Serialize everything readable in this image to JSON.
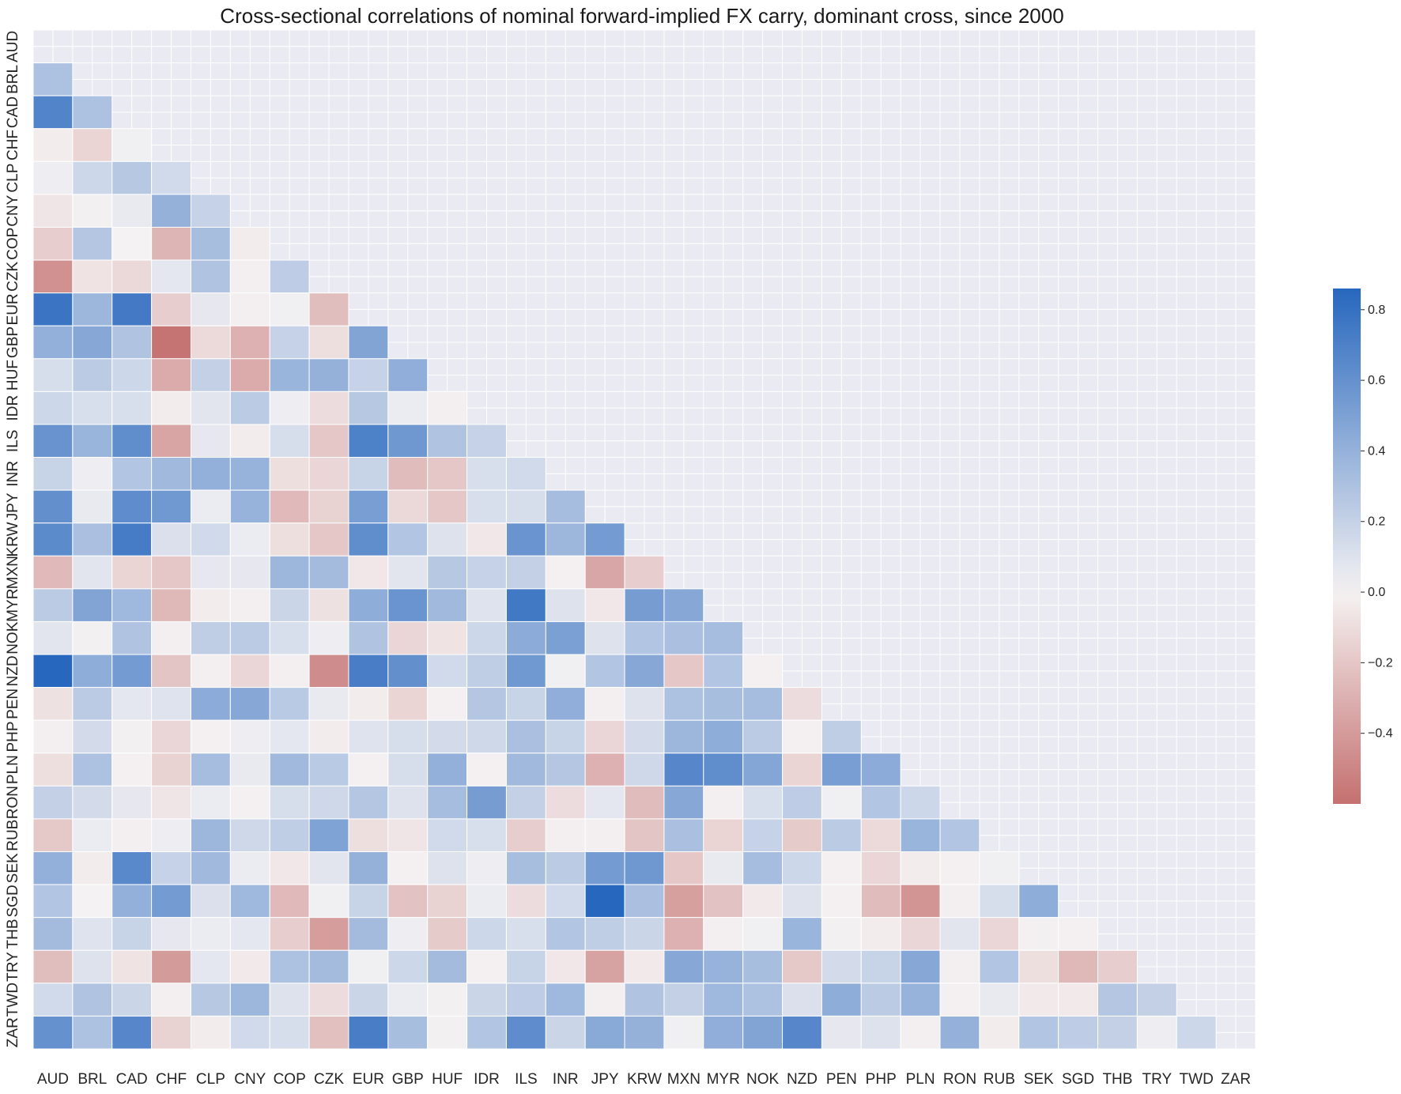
{
  "chart_data": {
    "type": "heatmap",
    "title": "Cross-sectional correlations of nominal forward-implied FX carry, dominant cross, since 2000",
    "xlabel": "",
    "ylabel": "",
    "x_labels": [
      "AUD",
      "BRL",
      "CAD",
      "CHF",
      "CLP",
      "CNY",
      "COP",
      "CZK",
      "EUR",
      "GBP",
      "HUF",
      "IDR",
      "ILS",
      "INR",
      "JPY",
      "KRW",
      "MXN",
      "MYR",
      "NOK",
      "NZD",
      "PEN",
      "PHP",
      "PLN",
      "RON",
      "RUB",
      "SEK",
      "SGD",
      "THB",
      "TRY",
      "TWD",
      "ZAR"
    ],
    "y_labels": [
      "AUD",
      "BRL",
      "CAD",
      "CHF",
      "CLP",
      "CNY",
      "COP",
      "CZK",
      "EUR",
      "GBP",
      "HUF",
      "IDR",
      "ILS",
      "INR",
      "JPY",
      "KRW",
      "MXN",
      "MYR",
      "NOK",
      "NZD",
      "PEN",
      "PHP",
      "PLN",
      "RON",
      "RUB",
      "SEK",
      "SGD",
      "THB",
      "TRY",
      "TWD",
      "ZAR"
    ],
    "mask": "upper triangle including diagonal",
    "colormap": {
      "low": "#c4706f",
      "mid": "#f5f2f3",
      "high": "#2767be"
    },
    "color_range": [
      -0.6,
      0.86
    ],
    "colorbar": {
      "ticks": [
        -0.4,
        -0.2,
        0.0,
        0.2,
        0.4,
        0.6,
        0.8
      ],
      "tick_labels": [
        "−0.4",
        "−0.2",
        "0.0",
        "0.2",
        "0.4",
        "0.6",
        "0.8"
      ],
      "placement": "right"
    },
    "background": "#eaeaf2",
    "rows": [
      [],
      [
        0.3
      ],
      [
        0.68,
        0.3
      ],
      [
        -0.03,
        -0.14,
        0.02
      ],
      [
        0.03,
        0.17,
        0.26,
        0.15
      ],
      [
        -0.06,
        0.01,
        0.05,
        0.4,
        0.2
      ],
      [
        -0.17,
        0.27,
        0.0,
        -0.28,
        0.32,
        -0.03
      ],
      [
        -0.45,
        -0.07,
        -0.12,
        0.07,
        0.29,
        -0.02,
        0.23
      ],
      [
        0.78,
        0.37,
        0.74,
        -0.17,
        0.06,
        -0.02,
        0.02,
        -0.24
      ],
      [
        0.41,
        0.46,
        0.29,
        -0.58,
        -0.11,
        -0.3,
        0.2,
        -0.09,
        0.48
      ],
      [
        0.13,
        0.24,
        0.17,
        -0.33,
        0.21,
        -0.33,
        0.38,
        0.4,
        0.2,
        0.42
      ],
      [
        0.17,
        0.12,
        0.12,
        -0.03,
        0.08,
        0.24,
        0.03,
        -0.1,
        0.26,
        0.04,
        -0.02
      ],
      [
        0.59,
        0.38,
        0.62,
        -0.36,
        0.06,
        -0.03,
        0.13,
        -0.2,
        0.7,
        0.56,
        0.29,
        0.2
      ],
      [
        0.19,
        0.03,
        0.28,
        0.35,
        0.41,
        0.39,
        -0.09,
        -0.13,
        0.19,
        -0.25,
        -0.2,
        0.12,
        0.15
      ],
      [
        0.61,
        0.05,
        0.63,
        0.55,
        0.04,
        0.39,
        -0.26,
        -0.15,
        0.52,
        -0.12,
        -0.2,
        0.12,
        0.13,
        0.33
      ],
      [
        0.64,
        0.31,
        0.73,
        0.11,
        0.15,
        0.04,
        -0.09,
        -0.2,
        0.62,
        0.28,
        0.1,
        -0.05,
        0.58,
        0.37,
        0.54
      ],
      [
        -0.26,
        0.08,
        -0.14,
        -0.2,
        0.06,
        0.06,
        0.37,
        0.34,
        -0.05,
        0.08,
        0.26,
        0.2,
        0.21,
        -0.01,
        -0.35,
        -0.17
      ],
      [
        0.24,
        0.48,
        0.36,
        -0.27,
        -0.03,
        -0.02,
        0.18,
        -0.08,
        0.43,
        0.58,
        0.35,
        0.09,
        0.75,
        0.1,
        -0.05,
        0.53,
        0.46
      ],
      [
        0.08,
        0.01,
        0.29,
        -0.02,
        0.22,
        0.24,
        0.12,
        0.03,
        0.29,
        -0.13,
        -0.07,
        0.17,
        0.44,
        0.51,
        0.1,
        0.28,
        0.31,
        0.33
      ],
      [
        0.86,
        0.43,
        0.54,
        -0.21,
        -0.02,
        -0.13,
        -0.02,
        -0.47,
        0.72,
        0.61,
        0.15,
        0.22,
        0.55,
        0.02,
        0.28,
        0.46,
        -0.2,
        0.28,
        -0.01
      ],
      [
        -0.08,
        0.24,
        0.07,
        0.09,
        0.44,
        0.46,
        0.25,
        0.05,
        -0.03,
        -0.14,
        -0.01,
        0.27,
        0.19,
        0.42,
        -0.02,
        0.1,
        0.3,
        0.32,
        0.33,
        -0.1
      ],
      [
        -0.02,
        0.14,
        0.01,
        -0.13,
        -0.01,
        0.03,
        0.07,
        -0.03,
        0.09,
        0.13,
        0.14,
        0.16,
        0.31,
        0.19,
        -0.13,
        0.14,
        0.37,
        0.43,
        0.24,
        -0.01,
        0.22
      ],
      [
        -0.09,
        0.3,
        -0.01,
        -0.15,
        0.33,
        0.05,
        0.35,
        0.25,
        -0.01,
        0.13,
        0.41,
        -0.01,
        0.35,
        0.27,
        -0.3,
        0.16,
        0.66,
        0.62,
        0.47,
        -0.14,
        0.52,
        0.44
      ],
      [
        0.21,
        0.14,
        0.06,
        -0.06,
        0.04,
        -0.01,
        0.13,
        0.16,
        0.27,
        0.1,
        0.33,
        0.53,
        0.21,
        -0.1,
        0.07,
        -0.25,
        0.46,
        -0.02,
        0.12,
        0.23,
        0.02,
        0.28,
        0.17
      ],
      [
        -0.19,
        0.04,
        -0.02,
        0.03,
        0.37,
        0.16,
        0.22,
        0.49,
        -0.09,
        -0.06,
        0.15,
        0.12,
        -0.17,
        -0.02,
        -0.02,
        -0.21,
        0.31,
        -0.14,
        0.2,
        -0.18,
        0.24,
        -0.11,
        0.38,
        0.28
      ],
      [
        0.41,
        -0.03,
        0.65,
        0.2,
        0.35,
        0.04,
        -0.05,
        0.08,
        0.4,
        -0.01,
        0.1,
        0.03,
        0.32,
        0.24,
        0.54,
        0.56,
        -0.2,
        0.05,
        0.33,
        0.17,
        -0.01,
        -0.13,
        -0.03,
        -0.01,
        0.02
      ],
      [
        0.28,
        0.0,
        0.41,
        0.54,
        0.11,
        0.36,
        -0.26,
        0.02,
        0.19,
        -0.22,
        -0.15,
        0.04,
        -0.1,
        0.15,
        0.86,
        0.31,
        -0.38,
        -0.22,
        -0.04,
        0.1,
        -0.01,
        -0.25,
        -0.43,
        -0.02,
        0.13,
        0.43
      ],
      [
        0.34,
        0.09,
        0.19,
        0.06,
        0.04,
        0.07,
        -0.17,
        -0.39,
        0.34,
        0.03,
        -0.18,
        0.17,
        0.12,
        0.28,
        0.22,
        0.18,
        -0.3,
        -0.02,
        0.02,
        0.38,
        0.01,
        -0.03,
        -0.13,
        0.08,
        -0.13,
        0.01,
        -0.01
      ],
      [
        -0.24,
        0.1,
        -0.07,
        -0.4,
        0.07,
        -0.04,
        0.3,
        0.34,
        0.02,
        0.17,
        0.34,
        -0.01,
        0.19,
        -0.05,
        -0.37,
        -0.04,
        0.46,
        0.39,
        0.32,
        -0.19,
        0.14,
        0.19,
        0.46,
        -0.02,
        0.28,
        -0.09,
        -0.27,
        -0.17
      ],
      [
        0.15,
        0.29,
        0.18,
        -0.02,
        0.26,
        0.37,
        0.1,
        -0.1,
        0.18,
        0.04,
        0.01,
        0.18,
        0.23,
        0.36,
        -0.02,
        0.29,
        0.21,
        0.36,
        0.3,
        0.11,
        0.43,
        0.24,
        0.39,
        -0.01,
        0.05,
        -0.04,
        -0.04,
        0.27,
        0.21
      ],
      [
        0.6,
        0.3,
        0.66,
        -0.15,
        -0.03,
        0.15,
        0.13,
        -0.23,
        0.72,
        0.32,
        0.01,
        0.28,
        0.63,
        0.18,
        0.45,
        0.4,
        0.02,
        0.42,
        0.48,
        0.66,
        0.06,
        0.1,
        -0.02,
        0.4,
        -0.03,
        0.28,
        0.23,
        0.21,
        0.03,
        0.17
      ]
    ]
  }
}
